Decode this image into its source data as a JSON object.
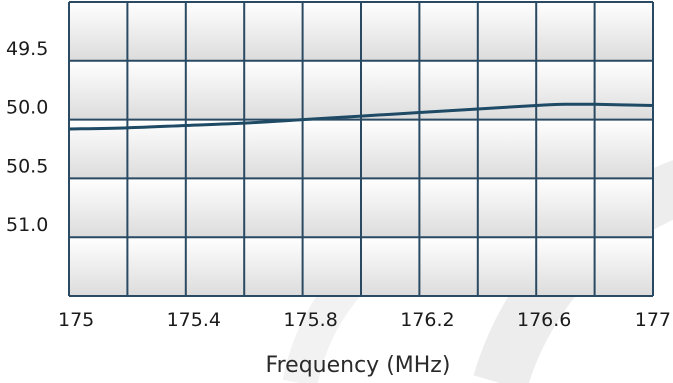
{
  "chart_data": {
    "type": "line",
    "title": "",
    "xlabel": "Frequency (MHz)",
    "ylabel": "",
    "xlim": [
      175,
      177
    ],
    "ylim": [
      49.0,
      51.5
    ],
    "y_inverted": true,
    "x_ticks": [
      "175",
      "175.4",
      "175.8",
      "176.2",
      "176.6",
      "177"
    ],
    "y_ticks": [
      "49.5",
      "50.0",
      "50.5",
      "51.0"
    ],
    "grid": true,
    "series": [
      {
        "x": [
          175.0,
          175.2,
          175.4,
          175.6,
          175.8,
          176.0,
          176.2,
          176.4,
          176.6,
          176.7,
          176.8,
          177.0
        ],
        "y": [
          50.08,
          50.07,
          50.05,
          50.03,
          50.0,
          49.97,
          49.94,
          49.91,
          49.88,
          49.87,
          49.87,
          49.88
        ]
      }
    ],
    "colors": {
      "line": "#1e4a66",
      "grid": "#2a4a63",
      "plot_bg_top": "#ffffff",
      "plot_bg_bottom": "#e0e0e0"
    }
  }
}
